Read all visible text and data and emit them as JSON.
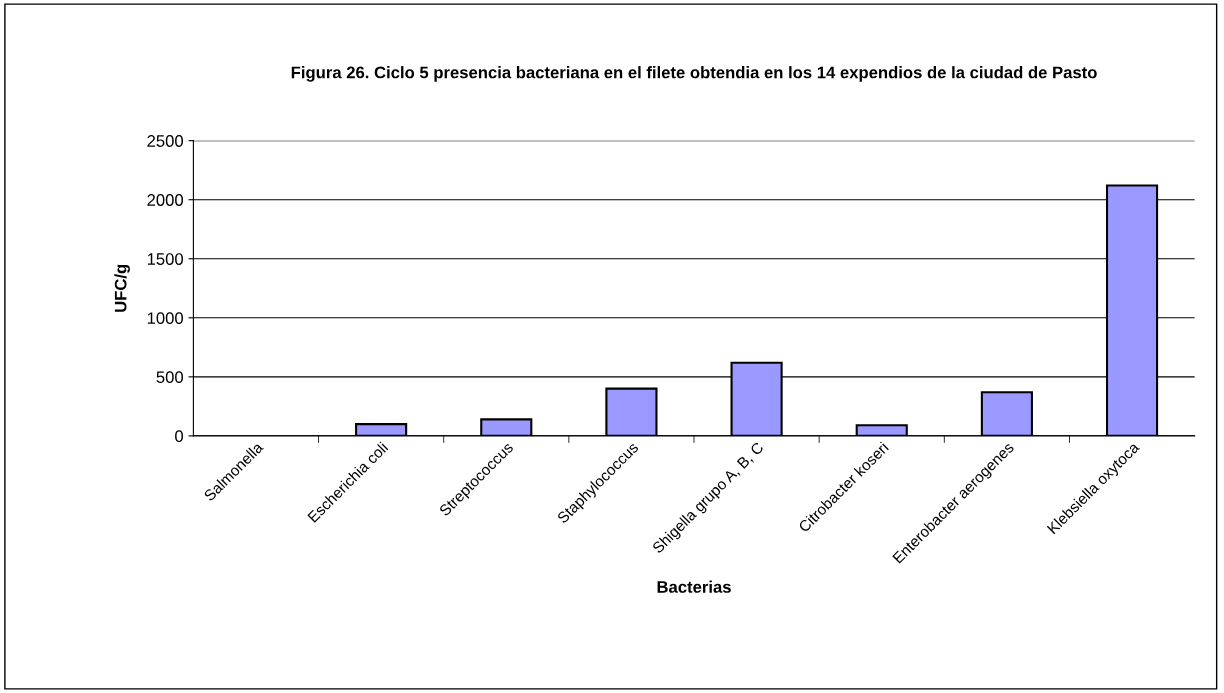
{
  "chart_data": {
    "type": "bar",
    "title": "Figura 26. Ciclo 5 presencia bacteriana en el filete obtendia en los 14 expendios de la ciudad de Pasto",
    "xlabel": "Bacterias",
    "ylabel": "UFC/g",
    "categories": [
      "Salmonella",
      "Escherichia coli",
      "Streptococcus",
      "Staphylococcus",
      "Shigella grupo A, B, C",
      "Citrobacter koseri",
      "Enterobacter aerogenes",
      "Klebsiella oxytoca"
    ],
    "values": [
      0,
      100,
      140,
      400,
      620,
      90,
      370,
      2120
    ],
    "color": "#9999ff",
    "ylim": [
      0,
      2500
    ],
    "yticks": [
      0,
      500,
      1000,
      1500,
      2000,
      2500
    ],
    "grid": "y",
    "legend": false
  }
}
